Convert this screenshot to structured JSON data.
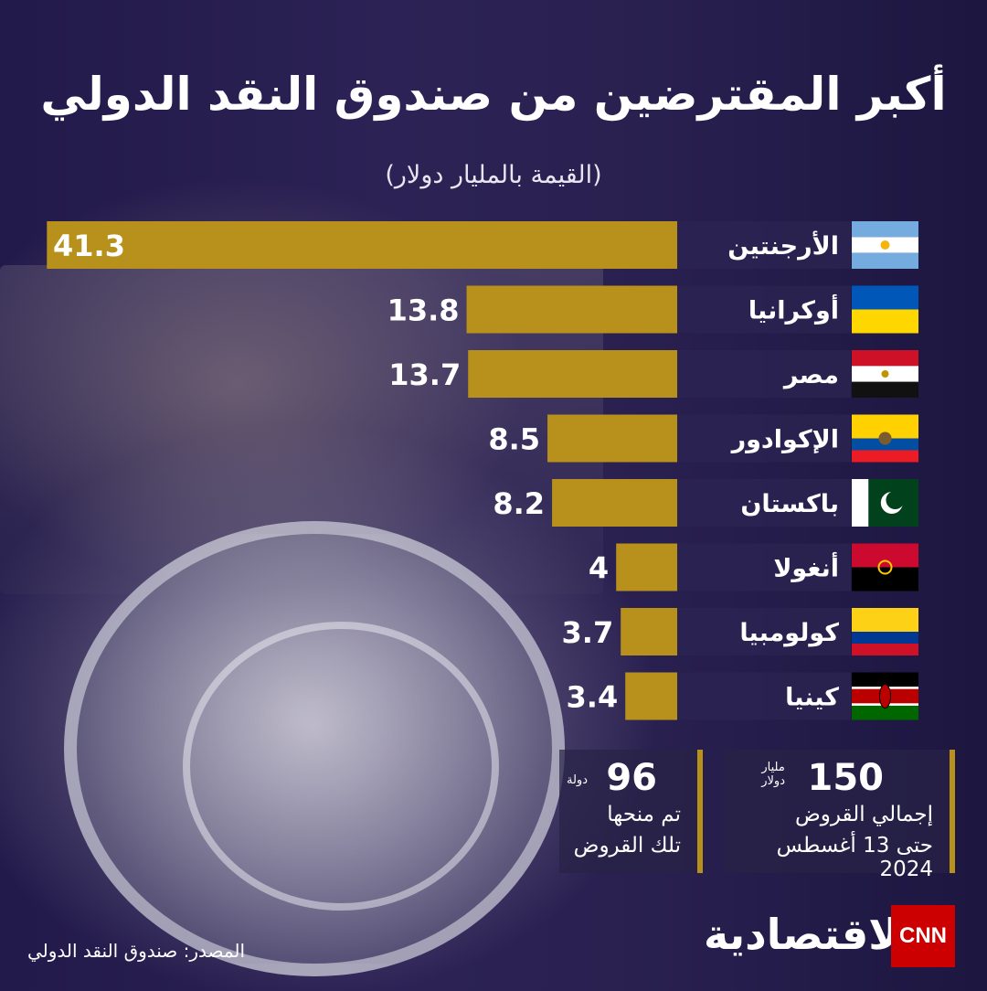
{
  "title": "أكبر المقترضين من صندوق النقد الدولي",
  "subtitle": "(القيمة بالمليار دولار)",
  "chart_data": {
    "type": "bar",
    "orientation": "horizontal",
    "categories": [
      "الأرجنتين",
      "أوكرانيا",
      "مصر",
      "الإكوادور",
      "باكستان",
      "أنغولا",
      "كولومبيا",
      "كينيا"
    ],
    "values": [
      41.3,
      13.8,
      13.7,
      8.5,
      8.2,
      4,
      3.7,
      3.4
    ],
    "value_labels": [
      "41.3",
      "13.8",
      "13.7",
      "8.5",
      "8.2",
      "4",
      "3.7",
      "3.4"
    ],
    "flags": [
      "argentina-flag",
      "ukraine-flag",
      "egypt-flag",
      "ecuador-flag",
      "pakistan-flag",
      "angola-flag",
      "colombia-flag",
      "kenya-flag"
    ],
    "bar_color": "#b8901c",
    "label_bg_color": "#2a2350",
    "grid": false
  },
  "stats": {
    "total_value": "150",
    "total_unit_line1": "مليار",
    "total_unit_line2": "دولار",
    "total_line1": "إجمالي القروض",
    "total_line2": "حتى 13 أغسطس 2024",
    "countries_value": "96",
    "countries_unit": "دولة",
    "countries_line1": "تم منحها",
    "countries_line2": "تلك القروض"
  },
  "source": "المصدر: صندوق النقد الدولي",
  "brand": {
    "logo_text": "الاقتصادية",
    "cnn_text": "CNN",
    "cnn_color": "#cc0000"
  },
  "colors": {
    "background": "#2a2151",
    "accent": "#b8901c"
  }
}
